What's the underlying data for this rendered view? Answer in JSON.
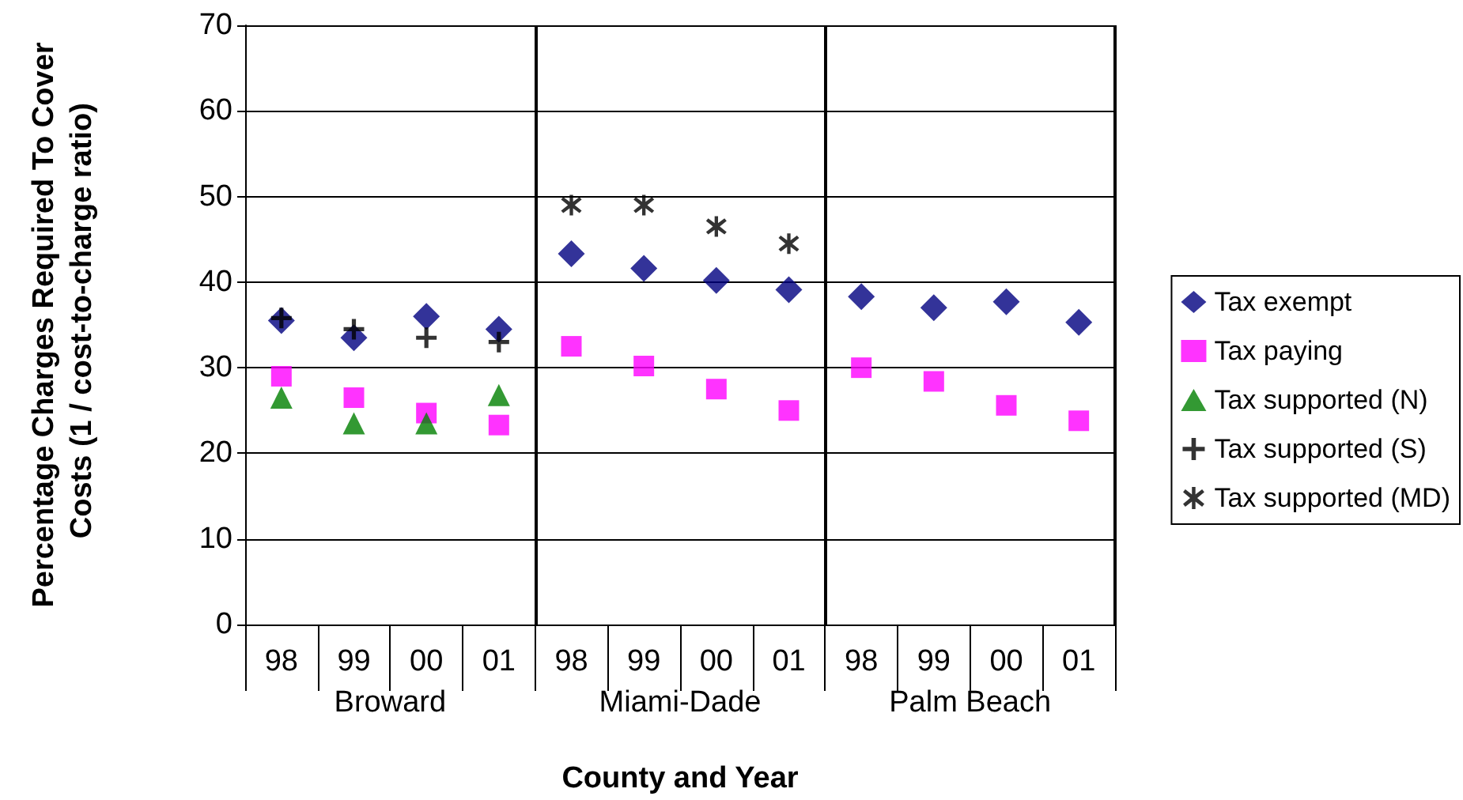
{
  "chart_data": {
    "type": "scatter",
    "xlabel": "County and Year",
    "ylabel": "Percentage Charges Required To Cover Costs (1 / cost-to-charge ratio)",
    "categories": [
      "98",
      "99",
      "00",
      "01",
      "98",
      "99",
      "00",
      "01",
      "98",
      "99",
      "00",
      "01"
    ],
    "annotations": [
      "Broward",
      "Miami-Dade",
      "Palm Beach"
    ],
    "series": [
      {
        "name": "Tax exempt",
        "color": "#000080",
        "marker": "diamond",
        "values": [
          35.5,
          33.5,
          36,
          34.5,
          43.3,
          41.6,
          40.2,
          39.1,
          38.3,
          37,
          37.7,
          35.3
        ]
      },
      {
        "name": "Tax paying",
        "color": "#ff00ff",
        "marker": "square",
        "values": [
          29,
          26.5,
          24.7,
          23.3,
          32.5,
          30.2,
          27.5,
          25,
          30,
          28.4,
          25.6,
          23.8
        ]
      },
      {
        "name": "Tax supported (N)",
        "color": "#008000",
        "marker": "triangle",
        "values": [
          26.5,
          23.5,
          23.5,
          26.8,
          null,
          null,
          null,
          null,
          null,
          null,
          null,
          null
        ]
      },
      {
        "name": "Tax supported (S)",
        "color": "#000000",
        "marker": "cross",
        "values": [
          35.8,
          34.5,
          33.5,
          33,
          null,
          null,
          null,
          null,
          null,
          null,
          null,
          null
        ]
      },
      {
        "name": "Tax supported (MD)",
        "color": "#000000",
        "marker": "star",
        "values": [
          null,
          null,
          null,
          null,
          49,
          49,
          46.5,
          44.5,
          null,
          null,
          null,
          null
        ]
      }
    ],
    "ylim": [
      0,
      70
    ],
    "yticks": [
      0,
      10,
      20,
      30,
      40,
      50,
      60,
      70
    ],
    "grid": "y",
    "legend": "right"
  }
}
